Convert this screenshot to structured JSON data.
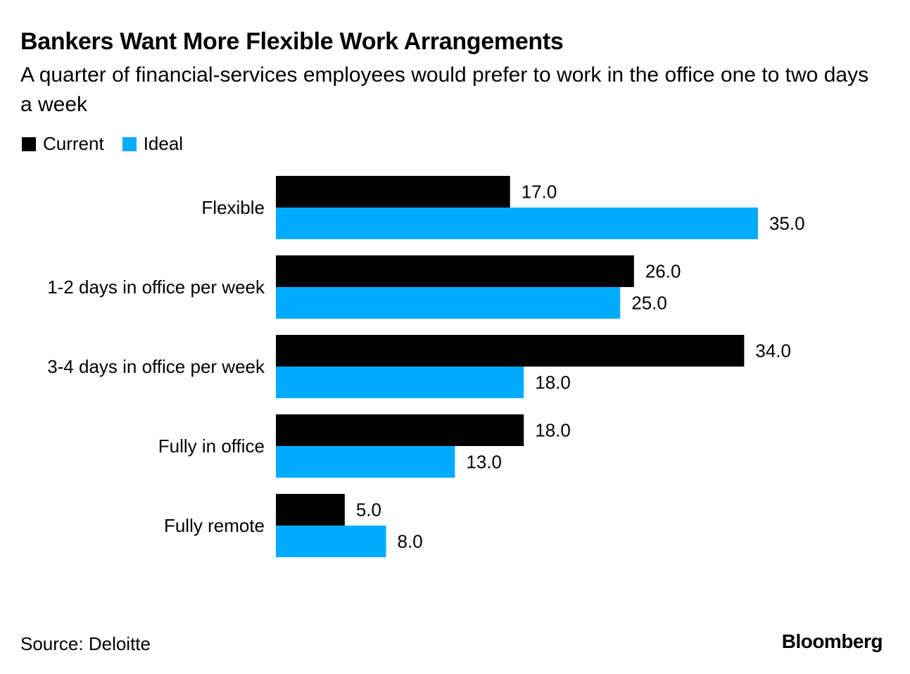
{
  "title": "Bankers Want More Flexible Work Arrangements",
  "subtitle": "A quarter of financial-services employees would prefer to work in the office one to two days a week",
  "source": "Source: Deloitte",
  "brand": "Bloomberg",
  "colors": {
    "current": "#000000",
    "ideal": "#00acff"
  },
  "chart_data": {
    "type": "bar",
    "orientation": "horizontal",
    "title": "Bankers Want More Flexible Work Arrangements",
    "xlabel": "",
    "ylabel": "",
    "xlim": [
      0,
      35
    ],
    "grid": false,
    "legend": "top-left",
    "categories": [
      "Flexible",
      "1-2 days in office per week",
      "3-4 days in office per week",
      "Fully in office",
      "Fully remote"
    ],
    "series": [
      {
        "name": "Current",
        "values": [
          17.0,
          26.0,
          34.0,
          18.0,
          5.0
        ],
        "labels": [
          "17.0",
          "26.0",
          "34.0",
          "18.0",
          "5.0"
        ]
      },
      {
        "name": "Ideal",
        "values": [
          35.0,
          25.0,
          18.0,
          13.0,
          8.0
        ],
        "labels": [
          "35.0",
          "25.0",
          "18.0",
          "13.0",
          "8.0"
        ]
      }
    ]
  }
}
